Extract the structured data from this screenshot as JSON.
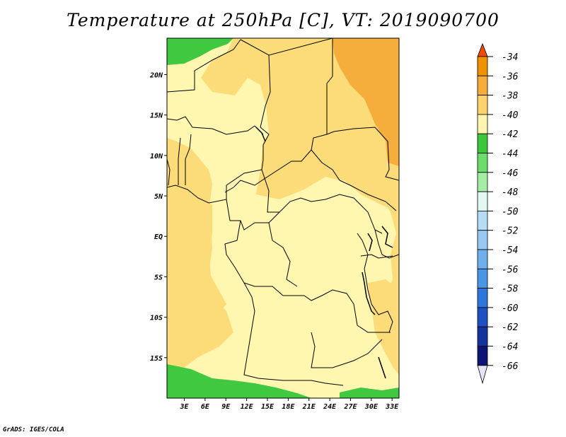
{
  "title": "Temperature at 250hPa [C], VT: 2019090700",
  "credit": "GrADS: IGES/COLA",
  "map": {
    "x_ticks": [
      "3E",
      "6E",
      "9E",
      "12E",
      "15E",
      "18E",
      "21E",
      "24E",
      "27E",
      "30E",
      "33E"
    ],
    "y_ticks": [
      "20N",
      "15N",
      "10N",
      "5N",
      "EQ",
      "5S",
      "10S",
      "15S"
    ],
    "extent": {
      "lon_min": 0.5,
      "lon_max": 34,
      "lat_min": -20,
      "lat_max": 24.5
    },
    "regions": [
      {
        "name": "green-northwest-patch",
        "value": "-44 to -42",
        "color": "#40c840"
      },
      {
        "name": "green-south-band",
        "value": "-44 to -42",
        "color": "#40c840"
      },
      {
        "name": "orange-northeast-area",
        "value": "-38 to -36",
        "color": "#f5ad3c"
      },
      {
        "name": "light-yellow-central-area",
        "value": "-42 to -40",
        "color": "#fff7b0"
      },
      {
        "name": "yellow-background",
        "value": "-40 to -38",
        "color": "#fcdc78"
      }
    ]
  },
  "colorbar": {
    "labels": [
      "-34",
      "-36",
      "-38",
      "-40",
      "-42",
      "-44",
      "-46",
      "-48",
      "-50",
      "-52",
      "-54",
      "-56",
      "-58",
      "-60",
      "-62",
      "-64",
      "-66"
    ],
    "colors": [
      "#f26414",
      "#f09100",
      "#f5ad3c",
      "#fcd36b",
      "#fff5b0",
      "#3ac83a",
      "#6cdc6c",
      "#a5eca5",
      "#e2f6f2",
      "#b4dcf5",
      "#97c8f2",
      "#6eb0ec",
      "#4a96e6",
      "#2e76dc",
      "#1e50c3",
      "#15339d",
      "#0c1575"
    ],
    "top_color": "#f04a0a",
    "bottom_color": "#e4e4f6"
  }
}
